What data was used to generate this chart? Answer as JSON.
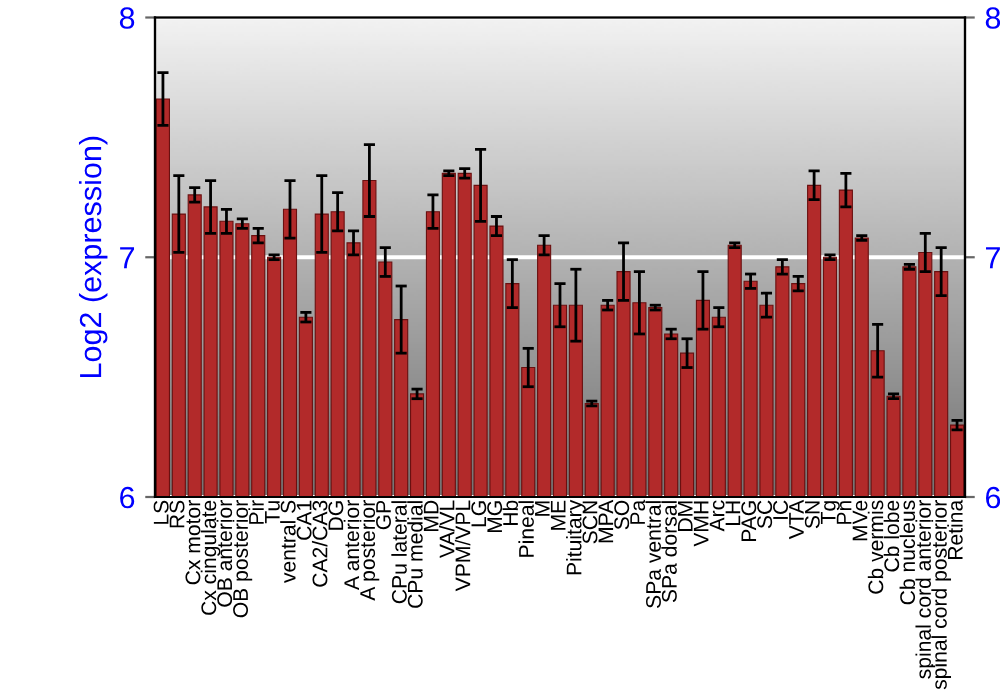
{
  "chart_data": {
    "type": "bar",
    "ylabel": "Log2 (expression)",
    "categories": [
      "LS",
      "RS",
      "Cx motor",
      "Cx cingulate",
      "OB anterior",
      "OB posterior",
      "Pir",
      "Tu",
      "ventral S",
      "CA1",
      "CA2/CA3",
      "DG",
      "A anterior",
      "A posterior",
      "GP",
      "CPu lateral",
      "CPu medial",
      "MD",
      "VA/VL",
      "VPM/VPL",
      "LG",
      "MG",
      "Hb",
      "Pineal",
      "M",
      "ME",
      "Pituitary",
      "SCN",
      "MPA",
      "SO",
      "Pa",
      "SPa ventral",
      "SPa dorsal",
      "DM",
      "VMH",
      "Arc",
      "LH",
      "PAG",
      "SC",
      "IC",
      "VTA",
      "SN",
      "Tg",
      "Pn",
      "MVe",
      "Cb vermis",
      "Cb lobe",
      "Cb nucleus",
      "spinal cord anterior",
      "spinal cord posterior",
      "Retina"
    ],
    "values": [
      7.66,
      7.18,
      7.26,
      7.21,
      7.15,
      7.14,
      7.09,
      7.0,
      7.2,
      6.75,
      7.18,
      7.19,
      7.06,
      7.32,
      6.98,
      6.74,
      6.43,
      7.19,
      7.35,
      7.35,
      7.3,
      7.13,
      6.89,
      6.54,
      7.05,
      6.8,
      6.8,
      6.39,
      6.8,
      6.94,
      6.81,
      6.79,
      6.68,
      6.6,
      6.82,
      6.75,
      7.05,
      6.9,
      6.8,
      6.96,
      6.89,
      7.3,
      7.0,
      7.28,
      7.08,
      6.61,
      6.42,
      6.96,
      7.02,
      6.94,
      6.3
    ],
    "errors": [
      0.11,
      0.16,
      0.03,
      0.11,
      0.05,
      0.02,
      0.03,
      0.01,
      0.12,
      0.02,
      0.16,
      0.08,
      0.05,
      0.15,
      0.06,
      0.14,
      0.02,
      0.07,
      0.01,
      0.02,
      0.15,
      0.04,
      0.1,
      0.08,
      0.04,
      0.09,
      0.15,
      0.01,
      0.02,
      0.12,
      0.13,
      0.01,
      0.02,
      0.06,
      0.12,
      0.04,
      0.01,
      0.03,
      0.05,
      0.03,
      0.03,
      0.06,
      0.01,
      0.07,
      0.01,
      0.11,
      0.01,
      0.01,
      0.08,
      0.1,
      0.02
    ],
    "color": "#b22a2a",
    "ylim": [
      6,
      8
    ],
    "yticks": [
      6,
      7,
      8
    ],
    "y2lim": [
      6,
      8
    ],
    "y2ticks": [
      6,
      7,
      8
    ],
    "grid": "y"
  }
}
